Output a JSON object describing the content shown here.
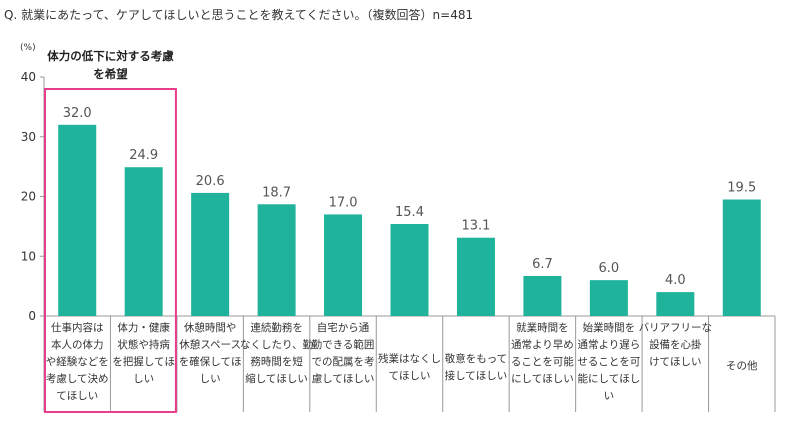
{
  "title": "Q. 就業にあたって、ケアしてほしいと思うことを教えてください。（複数回答）n=481",
  "chart_data": {
    "type": "bar",
    "unit_label": "(%)",
    "ylim": [
      0,
      40
    ],
    "yticks": [
      "0",
      "10",
      "20",
      "30",
      "40"
    ],
    "grid": false,
    "values": [
      32.0,
      24.9,
      20.6,
      18.7,
      17.0,
      15.4,
      13.1,
      6.7,
      6.0,
      4.0,
      19.5
    ],
    "value_labels": [
      "32.0",
      "24.9",
      "20.6",
      "18.7",
      "17.0",
      "15.4",
      "13.1",
      "6.7",
      "6.0",
      "4.0",
      "19.5"
    ],
    "category_lines": [
      [
        "仕事内容は",
        "本人の体力",
        "や経験などを",
        "考慮して決め",
        "てほしい"
      ],
      [
        "体力・健康",
        "状態や持病",
        "を把握してほ",
        "しい"
      ],
      [
        "休憩時間や",
        "休憩スペース",
        "を確保してほ",
        "しい"
      ],
      [
        "連続勤務を",
        "なくしたり、勤",
        "務時間を短",
        "縮してほしい"
      ],
      [
        "自宅から通",
        "勤できる範囲",
        "での配属を考",
        "慮してほしい"
      ],
      [
        "残業はなくし",
        "てほしい"
      ],
      [
        "敬意をもって",
        "接してほしい"
      ],
      [
        "就業時間を",
        "通常より早め",
        "ることを可能",
        "にしてほしい"
      ],
      [
        "始業時間を",
        "通常より遅ら",
        "せることを可",
        "能にしてほし",
        "い"
      ],
      [
        "バリアフリーな",
        "設備を心掛",
        "けてほしい"
      ],
      [
        "その他"
      ]
    ],
    "highlight": {
      "label_lines": [
        "体力の低下に対する考慮",
        "を希望"
      ],
      "categories": [
        0,
        1
      ],
      "color": "#e83e8c"
    },
    "bar_color": "#20b39b"
  }
}
